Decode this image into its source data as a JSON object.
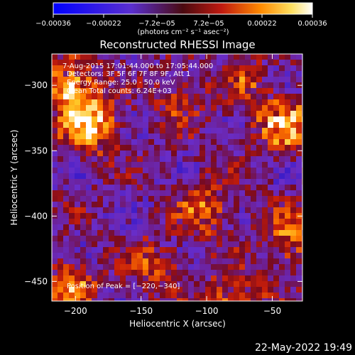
{
  "chart_data": {
    "type": "heatmap",
    "title": "Reconstructed RHESSI Image",
    "xlabel": "Heliocentric X (arcsec)",
    "ylabel": "Heliocentric Y (arcsec)",
    "xlim": [
      -218,
      -27
    ],
    "ylim": [
      -465,
      -276
    ],
    "x_ticks": [
      -200,
      -150,
      -100,
      -50
    ],
    "x_tick_labels": [
      "−200",
      "−150",
      "−100",
      "−50"
    ],
    "y_ticks": [
      -300,
      -350,
      -400,
      -450
    ],
    "y_tick_labels": [
      "−300",
      "−350",
      "−400",
      "−450"
    ],
    "colorbar": {
      "range": [
        -0.00036,
        0.00036
      ],
      "ticks": [
        -0.00036,
        -0.00022,
        -7.2e-05,
        7.2e-05,
        0.00022,
        0.00036
      ],
      "tick_labels": [
        "−0.00036",
        "−0.00022",
        "−7.2e−05",
        "7.2e−05",
        "0.00022",
        "0.00036"
      ],
      "units_label": "(photons cm⁻² s⁻¹ asec⁻²)",
      "colors": [
        "#0000ff",
        "#7a2fd6",
        "#8a1020",
        "#ff7a00",
        "#ffffff"
      ]
    },
    "annotations": [
      "7-Aug-2015 17:01:44.000 to 17:05:44.000",
      "Detectors: 3F 5F 6F 7F 8F 9F, Att 1",
      "Energy Range: 25.0 - 50.0 keV",
      "Clean     Total counts: 6.24E+03"
    ],
    "peak_label": "Position of Peak = [−220,−340]",
    "peak": [
      -220,
      -340
    ],
    "bright_regions": [
      {
        "x": -190,
        "y": -330,
        "value": 0.00036
      },
      {
        "x": -205,
        "y": -300,
        "value": 0.0003
      },
      {
        "x": -40,
        "y": -330,
        "value": 0.0003
      },
      {
        "x": -100,
        "y": -395,
        "value": 0.00022
      },
      {
        "x": -35,
        "y": -415,
        "value": 0.00024
      },
      {
        "x": -80,
        "y": -460,
        "value": 0.00022
      },
      {
        "x": -140,
        "y": -440,
        "value": 0.00018
      },
      {
        "x": -205,
        "y": -455,
        "value": 0.00024
      },
      {
        "x": -120,
        "y": -310,
        "value": 0.00014
      },
      {
        "x": -70,
        "y": -300,
        "value": 0.00012
      }
    ]
  },
  "footer": {
    "date": "22-May-2022 19:49"
  }
}
